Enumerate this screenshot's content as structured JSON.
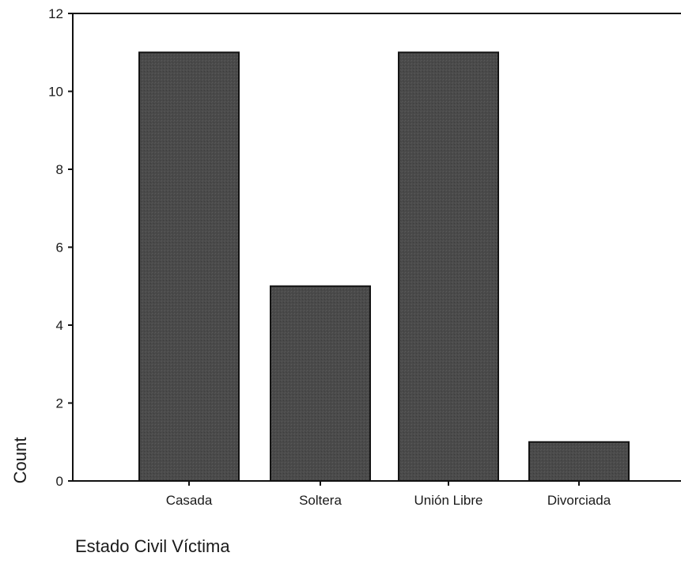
{
  "chart_data": {
    "type": "bar",
    "title": "",
    "xlabel": "Estado Civil Víctima",
    "ylabel": "Count",
    "categories": [
      "Casada",
      "Soltera",
      "Unión Libre",
      "Divorciada"
    ],
    "values": [
      11,
      5,
      11,
      1
    ],
    "ylim": [
      0,
      12
    ],
    "yticks": [
      0,
      2,
      4,
      6,
      8,
      10,
      12
    ],
    "grid": false,
    "legend": "none",
    "bar_color": "#4a4a4a"
  }
}
